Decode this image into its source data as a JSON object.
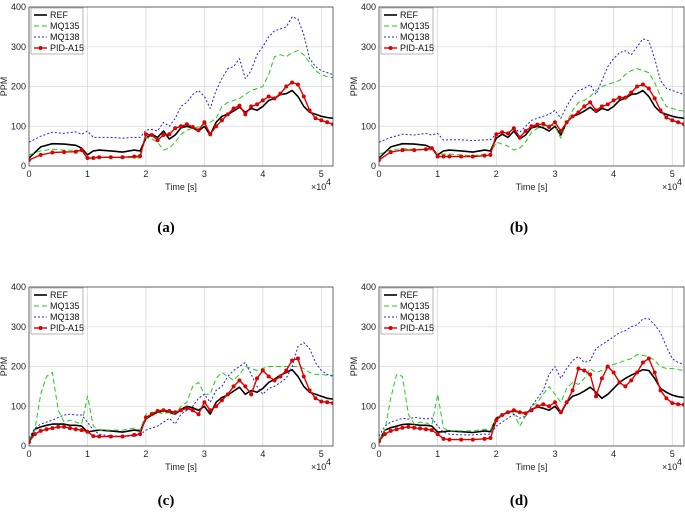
{
  "figure": {
    "panels": [
      "(a)",
      "(b)",
      "(c)",
      "(d)"
    ]
  },
  "chart_data": [
    {
      "type": "line",
      "caption": "(a)",
      "xlabel": "Time [s]",
      "ylabel": "PPM",
      "x_multiplier": "×10",
      "x_multiplier_exp": "4",
      "xlim": [
        0,
        5.2
      ],
      "ylim": [
        0,
        400
      ],
      "xticks": [
        "0",
        "1",
        "2",
        "3",
        "4",
        "5"
      ],
      "yticks": [
        "0",
        "100",
        "200",
        "300",
        "400"
      ],
      "legend_position": "top-left",
      "x": [
        0,
        0.2,
        0.4,
        0.6,
        0.8,
        0.9,
        1.0,
        1.1,
        1.2,
        1.4,
        1.6,
        1.8,
        1.9,
        2.0,
        2.1,
        2.2,
        2.3,
        2.4,
        2.5,
        2.6,
        2.7,
        2.8,
        2.9,
        3.0,
        3.1,
        3.2,
        3.3,
        3.4,
        3.5,
        3.6,
        3.7,
        3.8,
        3.9,
        4.0,
        4.1,
        4.2,
        4.3,
        4.4,
        4.5,
        4.6,
        4.7,
        4.8,
        4.9,
        5.0,
        5.1,
        5.2
      ],
      "series": [
        {
          "name": "REF",
          "color": "#000000",
          "dash": "solid",
          "values": [
            20,
            48,
            56,
            55,
            52,
            45,
            28,
            38,
            40,
            38,
            35,
            40,
            38,
            70,
            80,
            72,
            88,
            68,
            78,
            96,
            100,
            96,
            88,
            100,
            78,
            110,
            125,
            130,
            138,
            148,
            135,
            145,
            140,
            150,
            165,
            170,
            180,
            182,
            190,
            175,
            150,
            135,
            130,
            125,
            122,
            120
          ]
        },
        {
          "name": "MQ135",
          "color": "#22cc22",
          "dash": "5,3",
          "values": [
            28,
            38,
            42,
            40,
            40,
            38,
            18,
            22,
            24,
            22,
            20,
            22,
            20,
            72,
            68,
            60,
            40,
            45,
            60,
            80,
            90,
            95,
            98,
            105,
            110,
            120,
            150,
            160,
            165,
            170,
            180,
            190,
            195,
            200,
            230,
            275,
            280,
            275,
            285,
            290,
            280,
            260,
            240,
            230,
            225,
            222
          ]
        },
        {
          "name": "MQ138",
          "color": "#2222dd",
          "dash": "2,2",
          "values": [
            60,
            75,
            85,
            82,
            86,
            80,
            88,
            72,
            72,
            72,
            70,
            72,
            72,
            90,
            92,
            88,
            110,
            100,
            120,
            150,
            160,
            180,
            190,
            175,
            145,
            190,
            220,
            245,
            250,
            270,
            220,
            240,
            280,
            300,
            325,
            340,
            345,
            350,
            375,
            370,
            330,
            270,
            250,
            240,
            235,
            230
          ]
        },
        {
          "name": "PID-A15",
          "color": "#dd0000",
          "dash": "solid",
          "marker": "dot",
          "values": [
            15,
            28,
            34,
            35,
            36,
            40,
            20,
            20,
            22,
            22,
            22,
            24,
            25,
            80,
            78,
            65,
            78,
            80,
            95,
            100,
            105,
            98,
            90,
            110,
            80,
            100,
            115,
            130,
            145,
            152,
            130,
            150,
            155,
            165,
            175,
            170,
            182,
            200,
            210,
            205,
            175,
            140,
            120,
            115,
            110,
            105
          ]
        }
      ]
    },
    {
      "type": "line",
      "caption": "(b)",
      "xlabel": "Time [s]",
      "ylabel": "PPM",
      "x_multiplier": "×10",
      "x_multiplier_exp": "4",
      "xlim": [
        0,
        5.2
      ],
      "ylim": [
        0,
        400
      ],
      "xticks": [
        "0",
        "1",
        "2",
        "3",
        "4",
        "5"
      ],
      "yticks": [
        "0",
        "100",
        "200",
        "300",
        "400"
      ],
      "legend_position": "top-left",
      "x": [
        0,
        0.2,
        0.4,
        0.6,
        0.8,
        0.9,
        1.0,
        1.1,
        1.2,
        1.4,
        1.6,
        1.8,
        1.9,
        2.0,
        2.1,
        2.2,
        2.3,
        2.4,
        2.5,
        2.6,
        2.7,
        2.8,
        2.9,
        3.0,
        3.1,
        3.2,
        3.3,
        3.4,
        3.5,
        3.6,
        3.7,
        3.8,
        3.9,
        4.0,
        4.1,
        4.2,
        4.3,
        4.4,
        4.5,
        4.6,
        4.7,
        4.8,
        4.9,
        5.0,
        5.1,
        5.2
      ],
      "series": [
        {
          "name": "REF",
          "color": "#000000",
          "dash": "solid",
          "values": [
            20,
            48,
            56,
            55,
            52,
            45,
            28,
            38,
            40,
            38,
            35,
            40,
            38,
            70,
            80,
            72,
            88,
            68,
            78,
            96,
            100,
            96,
            88,
            100,
            78,
            110,
            125,
            130,
            138,
            148,
            135,
            145,
            140,
            150,
            165,
            170,
            180,
            182,
            190,
            175,
            150,
            135,
            130,
            125,
            122,
            120
          ]
        },
        {
          "name": "MQ135",
          "color": "#22cc22",
          "dash": "5,3",
          "values": [
            30,
            40,
            44,
            42,
            42,
            40,
            30,
            30,
            30,
            28,
            26,
            30,
            30,
            60,
            55,
            50,
            40,
            45,
            60,
            85,
            95,
            100,
            105,
            100,
            70,
            110,
            140,
            160,
            165,
            175,
            190,
            200,
            205,
            210,
            215,
            230,
            240,
            245,
            240,
            235,
            210,
            175,
            150,
            145,
            140,
            138
          ]
        },
        {
          "name": "MQ138",
          "color": "#2222dd",
          "dash": "2,2",
          "values": [
            60,
            72,
            80,
            78,
            82,
            78,
            82,
            65,
            66,
            66,
            64,
            66,
            66,
            80,
            85,
            82,
            95,
            85,
            100,
            115,
            120,
            125,
            130,
            140,
            120,
            150,
            175,
            190,
            195,
            205,
            180,
            215,
            250,
            270,
            285,
            290,
            280,
            300,
            320,
            315,
            270,
            215,
            195,
            190,
            185,
            180
          ]
        },
        {
          "name": "PID-A15",
          "color": "#dd0000",
          "dash": "solid",
          "marker": "dot",
          "values": [
            15,
            35,
            40,
            40,
            42,
            45,
            24,
            24,
            24,
            24,
            24,
            26,
            28,
            80,
            85,
            82,
            95,
            72,
            88,
            100,
            104,
            106,
            98,
            110,
            88,
            110,
            125,
            135,
            150,
            160,
            140,
            150,
            155,
            165,
            172,
            172,
            185,
            200,
            205,
            195,
            170,
            140,
            122,
            115,
            110,
            105
          ]
        }
      ]
    },
    {
      "type": "line",
      "caption": "(c)",
      "xlabel": "Time [s]",
      "ylabel": "PPM",
      "x_multiplier": "×10",
      "x_multiplier_exp": "4",
      "xlim": [
        0,
        5.2
      ],
      "ylim": [
        0,
        400
      ],
      "xticks": [
        "0",
        "1",
        "2",
        "3",
        "4",
        "5"
      ],
      "yticks": [
        "0",
        "100",
        "200",
        "300",
        "400"
      ],
      "legend_position": "top-left",
      "x": [
        0,
        0.1,
        0.2,
        0.3,
        0.4,
        0.5,
        0.6,
        0.7,
        0.8,
        0.9,
        1.0,
        1.1,
        1.2,
        1.4,
        1.6,
        1.8,
        1.9,
        2.0,
        2.1,
        2.2,
        2.3,
        2.4,
        2.5,
        2.6,
        2.7,
        2.8,
        2.9,
        3.0,
        3.1,
        3.2,
        3.3,
        3.4,
        3.5,
        3.6,
        3.7,
        3.8,
        3.9,
        4.0,
        4.1,
        4.2,
        4.3,
        4.4,
        4.5,
        4.6,
        4.7,
        4.8,
        4.9,
        5.0,
        5.1,
        5.2
      ],
      "series": [
        {
          "name": "REF",
          "color": "#000000",
          "dash": "solid",
          "values": [
            10,
            42,
            48,
            52,
            55,
            55,
            55,
            52,
            52,
            50,
            35,
            38,
            40,
            38,
            35,
            40,
            38,
            68,
            78,
            85,
            88,
            85,
            80,
            92,
            100,
            96,
            90,
            100,
            80,
            110,
            122,
            128,
            138,
            148,
            130,
            140,
            135,
            145,
            160,
            168,
            178,
            185,
            192,
            175,
            150,
            135,
            130,
            125,
            120,
            118
          ]
        },
        {
          "name": "MQ135",
          "color": "#22cc22",
          "dash": "5,3",
          "values": [
            15,
            40,
            130,
            175,
            185,
            90,
            60,
            65,
            60,
            55,
            125,
            50,
            40,
            40,
            40,
            45,
            40,
            80,
            85,
            85,
            80,
            85,
            80,
            100,
            110,
            150,
            160,
            130,
            130,
            170,
            185,
            175,
            165,
            180,
            200,
            195,
            190,
            195,
            200,
            200,
            200,
            200,
            200,
            200,
            195,
            185,
            180,
            180,
            178,
            178
          ]
        },
        {
          "name": "MQ138",
          "color": "#2222dd",
          "dash": "2,2",
          "values": [
            20,
            45,
            55,
            60,
            65,
            72,
            78,
            80,
            78,
            78,
            60,
            40,
            30,
            25,
            25,
            25,
            28,
            40,
            45,
            50,
            60,
            70,
            55,
            80,
            90,
            100,
            120,
            130,
            110,
            140,
            150,
            175,
            190,
            200,
            210,
            180,
            150,
            130,
            145,
            150,
            160,
            170,
            200,
            250,
            260,
            245,
            210,
            190,
            180,
            175
          ]
        },
        {
          "name": "PID-A15",
          "color": "#dd0000",
          "dash": "solid",
          "marker": "dot",
          "values": [
            10,
            30,
            38,
            42,
            45,
            48,
            48,
            45,
            42,
            40,
            36,
            25,
            24,
            24,
            24,
            28,
            30,
            72,
            80,
            88,
            90,
            88,
            85,
            90,
            95,
            90,
            80,
            110,
            90,
            100,
            115,
            130,
            150,
            165,
            150,
            130,
            170,
            190,
            175,
            165,
            175,
            190,
            215,
            220,
            175,
            140,
            120,
            112,
            110,
            108
          ]
        }
      ]
    },
    {
      "type": "line",
      "caption": "(d)",
      "xlabel": "Time [s]",
      "ylabel": "PPM",
      "x_multiplier": "×10",
      "x_multiplier_exp": "4",
      "xlim": [
        0,
        5.2
      ],
      "ylim": [
        0,
        400
      ],
      "xticks": [
        "0",
        "1",
        "2",
        "3",
        "4",
        "5"
      ],
      "yticks": [
        "0",
        "100",
        "200",
        "300",
        "400"
      ],
      "legend_position": "top-left",
      "x": [
        0,
        0.1,
        0.2,
        0.3,
        0.4,
        0.5,
        0.6,
        0.7,
        0.8,
        0.9,
        1.0,
        1.1,
        1.2,
        1.4,
        1.6,
        1.8,
        1.9,
        2.0,
        2.1,
        2.2,
        2.3,
        2.4,
        2.5,
        2.6,
        2.7,
        2.8,
        2.9,
        3.0,
        3.1,
        3.2,
        3.3,
        3.4,
        3.5,
        3.6,
        3.7,
        3.8,
        3.9,
        4.0,
        4.1,
        4.2,
        4.3,
        4.4,
        4.5,
        4.6,
        4.7,
        4.8,
        4.9,
        5.0,
        5.1,
        5.2
      ],
      "series": [
        {
          "name": "REF",
          "color": "#000000",
          "dash": "solid",
          "values": [
            12,
            40,
            46,
            50,
            54,
            55,
            54,
            52,
            52,
            50,
            35,
            36,
            38,
            36,
            34,
            38,
            36,
            70,
            78,
            85,
            88,
            85,
            82,
            92,
            98,
            95,
            90,
            100,
            82,
            110,
            125,
            130,
            138,
            148,
            135,
            120,
            130,
            145,
            160,
            170,
            178,
            185,
            192,
            190,
            170,
            145,
            135,
            128,
            124,
            122
          ]
        },
        {
          "name": "MQ135",
          "color": "#22cc22",
          "dash": "5,3",
          "values": [
            15,
            40,
            120,
            180,
            175,
            80,
            55,
            60,
            58,
            52,
            130,
            45,
            38,
            38,
            38,
            42,
            40,
            70,
            80,
            88,
            82,
            50,
            75,
            100,
            110,
            130,
            150,
            130,
            110,
            145,
            160,
            155,
            170,
            195,
            185,
            190,
            200,
            205,
            210,
            215,
            220,
            230,
            228,
            225,
            215,
            200,
            195,
            195,
            192,
            190
          ]
        },
        {
          "name": "MQ138",
          "color": "#2222dd",
          "dash": "2,2",
          "values": [
            25,
            50,
            60,
            65,
            70,
            68,
            72,
            70,
            68,
            70,
            50,
            35,
            30,
            28,
            28,
            30,
            30,
            50,
            60,
            70,
            80,
            70,
            75,
            100,
            120,
            140,
            180,
            200,
            170,
            195,
            215,
            225,
            210,
            215,
            245,
            255,
            265,
            275,
            285,
            290,
            300,
            305,
            320,
            320,
            305,
            285,
            250,
            220,
            210,
            205
          ]
        },
        {
          "name": "PID-A15",
          "color": "#dd0000",
          "dash": "solid",
          "marker": "dot",
          "values": [
            12,
            30,
            38,
            42,
            46,
            48,
            46,
            44,
            42,
            40,
            30,
            18,
            16,
            16,
            16,
            18,
            20,
            65,
            78,
            85,
            90,
            85,
            82,
            90,
            100,
            105,
            100,
            110,
            85,
            110,
            140,
            195,
            190,
            180,
            125,
            170,
            200,
            185,
            160,
            150,
            165,
            185,
            210,
            220,
            185,
            140,
            120,
            108,
            105,
            104
          ]
        }
      ]
    }
  ]
}
